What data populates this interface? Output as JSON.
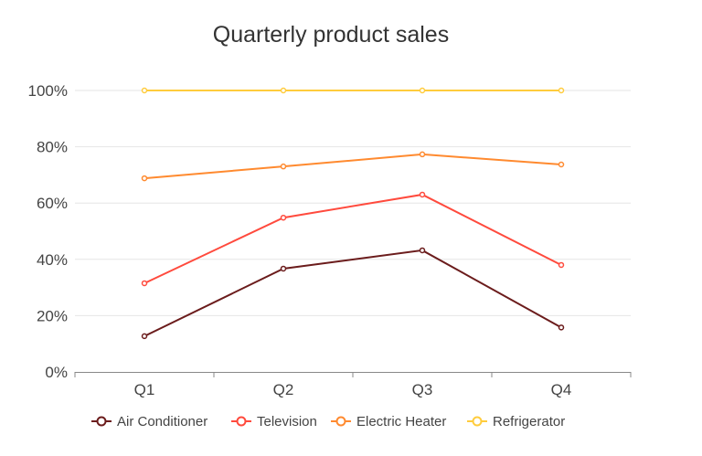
{
  "chart_data": {
    "type": "line",
    "stacking": "percent",
    "title": "Quarterly product sales",
    "xlabel": "",
    "ylabel": "",
    "categories": [
      "Q1",
      "Q2",
      "Q3",
      "Q4"
    ],
    "ylim": [
      0,
      100
    ],
    "yticks": [
      "0%",
      "20%",
      "40%",
      "60%",
      "80%",
      "100%"
    ],
    "grid": true,
    "legend_position": "bottom",
    "series": [
      {
        "name": "Air Conditioner",
        "color": "#6b1c1c",
        "values": [
          12.7,
          36.7,
          43.2,
          15.8
        ]
      },
      {
        "name": "Television",
        "color": "#ff4a3d",
        "values": [
          31.5,
          54.8,
          63.0,
          38.0
        ]
      },
      {
        "name": "Electric Heater",
        "color": "#ff8a2f",
        "values": [
          68.8,
          73.0,
          77.3,
          73.7
        ]
      },
      {
        "name": "Refrigerator",
        "color": "#ffcc3d",
        "values": [
          100,
          100,
          100,
          100
        ]
      }
    ]
  }
}
